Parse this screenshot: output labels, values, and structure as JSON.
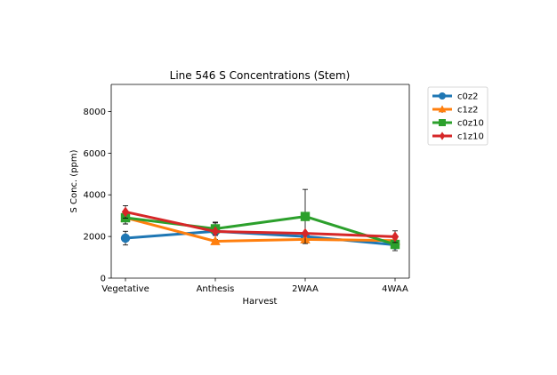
{
  "chart_data": {
    "type": "line",
    "title": "Line 546 S Concentrations (Stem)",
    "xlabel": "Harvest",
    "ylabel": "S Conc. (ppm)",
    "categories": [
      "Vegetative",
      "Anthesis",
      "2WAA",
      "4WAA"
    ],
    "ylim": [
      0,
      9300
    ],
    "yticks": [
      0,
      2000,
      4000,
      6000,
      8000
    ],
    "yticklabels": [
      "0",
      "2000",
      "4000",
      "6000",
      "8000"
    ],
    "grid": false,
    "legend_position": "outside-upper-right",
    "series": [
      {
        "name": "c0z2",
        "color": "#1f77b4",
        "marker": "circle",
        "values": [
          1920,
          2250,
          2000,
          1600
        ],
        "errors": [
          330,
          400,
          0,
          0
        ]
      },
      {
        "name": "c1z2",
        "color": "#ff7f0e",
        "marker": "triangle",
        "values": [
          2900,
          1770,
          1860,
          1800
        ],
        "errors": [
          300,
          0,
          0,
          0
        ]
      },
      {
        "name": "c0z10",
        "color": "#2ca02c",
        "marker": "square",
        "values": [
          2900,
          2370,
          2960,
          1620
        ],
        "errors": [
          300,
          320,
          1300,
          300
        ]
      },
      {
        "name": "c1z10",
        "color": "#d62728",
        "marker": "diamond",
        "values": [
          3180,
          2240,
          2150,
          1990
        ],
        "errors": [
          300,
          0,
          0,
          280
        ]
      }
    ]
  }
}
